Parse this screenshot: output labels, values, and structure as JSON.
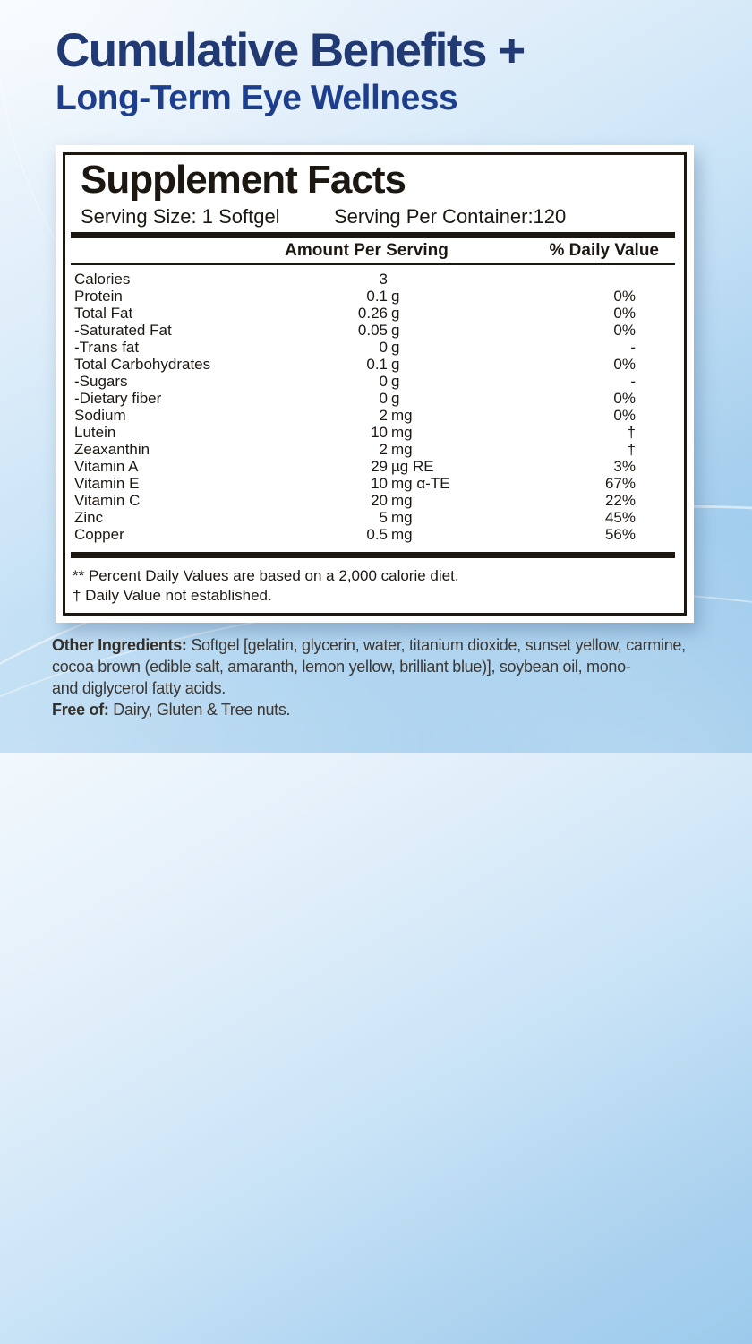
{
  "title": {
    "line1": "Cumulative Benefits +",
    "line2": "Long-Term Eye Wellness"
  },
  "panel": {
    "heading": "Supplement Facts",
    "serving_size": "Serving Size: 1 Softgel",
    "servings_per_container": "Serving Per Container:120",
    "col_amount": "Amount Per Serving",
    "col_daily_value": "% Daily Value",
    "rows": [
      {
        "name": "Calories",
        "amount": "3",
        "unit": "",
        "dv": ""
      },
      {
        "name": "Protein",
        "amount": "0.1",
        "unit": "g",
        "dv": "0%"
      },
      {
        "name": "Total Fat",
        "amount": "0.26",
        "unit": "g",
        "dv": "0%"
      },
      {
        "name": "-Saturated Fat",
        "amount": "0.05",
        "unit": "g",
        "dv": "0%"
      },
      {
        "name": "-Trans fat",
        "amount": "0",
        "unit": "g",
        "dv": "-"
      },
      {
        "name": "Total Carbohydrates",
        "amount": "0.1",
        "unit": "g",
        "dv": "0%"
      },
      {
        "name": "-Sugars",
        "amount": "0",
        "unit": "g",
        "dv": "-"
      },
      {
        "name": "-Dietary fiber",
        "amount": "0",
        "unit": "g",
        "dv": "0%"
      },
      {
        "name": "Sodium",
        "amount": "2",
        "unit": "mg",
        "dv": "0%"
      },
      {
        "name": "Lutein",
        "amount": "10",
        "unit": "mg",
        "dv": "†"
      },
      {
        "name": "Zeaxanthin",
        "amount": "2",
        "unit": "mg",
        "dv": "†"
      },
      {
        "name": "Vitamin A",
        "amount": "29",
        "unit": "µg RE",
        "dv": "3%"
      },
      {
        "name": "Vitamin E",
        "amount": "10",
        "unit": "mg α-TE",
        "dv": "67%"
      },
      {
        "name": "Vitamin C",
        "amount": "20",
        "unit": "mg",
        "dv": "22%"
      },
      {
        "name": "Zinc",
        "amount": "5",
        "unit": "mg",
        "dv": "45%"
      },
      {
        "name": "Copper",
        "amount": "0.5",
        "unit": "mg",
        "dv": "56%"
      }
    ],
    "footnotes": [
      "** Percent Daily Values are based on a 2,000 calorie diet.",
      "† Daily Value not established."
    ]
  },
  "bottom": {
    "other_label": "Other Ingredients:",
    "other_line1": " Softgel [gelatin, glycerin, water, titanium dioxide, sunset yellow, carmine,",
    "other_line2": "cocoa brown (edible salt, amaranth, lemon yellow, brilliant blue)], soybean oil, mono-",
    "other_line3": "and diglycerol fatty acids.",
    "free_label": "Free of:",
    "free_text": " Dairy, Gluten & Tree nuts."
  },
  "colors": {
    "title_navy": "#213a74",
    "title_blue": "#1d3e8c",
    "panel_ink": "#1d1712",
    "body_text": "#3b3734",
    "background_top": "#f2f8fd",
    "background_bottom": "#8fc3e9"
  }
}
